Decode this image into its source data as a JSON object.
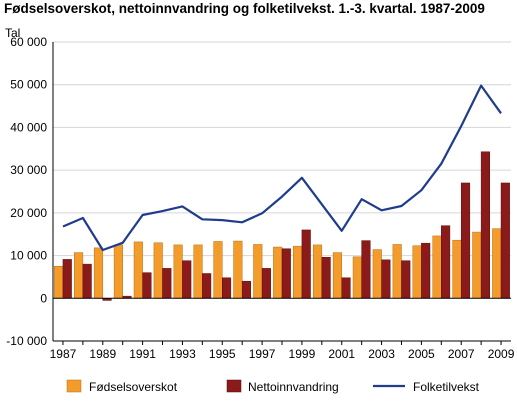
{
  "chart_data": {
    "type": "bar",
    "title": "Fødselsoverskot, nettoinnvandring og folketilvekst. 1.-3. kvartal. 1987-2009",
    "ylabel": "Tal",
    "xlabel": "",
    "ylim": [
      -10000,
      60000
    ],
    "yticks": [
      -10000,
      0,
      10000,
      20000,
      30000,
      40000,
      50000,
      60000
    ],
    "ytick_labels": [
      "-10 000",
      "0",
      "10 000",
      "20 000",
      "30 000",
      "40 000",
      "50 000",
      "60 000"
    ],
    "x": [
      1987,
      1988,
      1989,
      1990,
      1991,
      1992,
      1993,
      1994,
      1995,
      1996,
      1997,
      1998,
      1999,
      2000,
      2001,
      2002,
      2003,
      2004,
      2005,
      2006,
      2007,
      2008,
      2009
    ],
    "xtick_labels": [
      "1987",
      "1989",
      "1991",
      "1993",
      "1995",
      "1997",
      "1999",
      "2001",
      "2003",
      "2005",
      "2007",
      "2009"
    ],
    "grid": true,
    "legend_position": "bottom",
    "series": [
      {
        "name": "Fødselsoverskot",
        "kind": "bar",
        "color": "#f39c2c",
        "values": [
          7500,
          10700,
          11800,
          12500,
          13200,
          13000,
          12500,
          12500,
          13300,
          13400,
          12600,
          12000,
          12200,
          12500,
          10700,
          9700,
          11400,
          12600,
          12300,
          14600,
          13600,
          15500,
          16300
        ]
      },
      {
        "name": "Nettoinnvandring",
        "kind": "bar",
        "color": "#8b1a1a",
        "values": [
          9100,
          8000,
          -500,
          500,
          6000,
          7000,
          8800,
          5800,
          4800,
          4000,
          7000,
          11600,
          16000,
          9600,
          4800,
          13500,
          9000,
          8800,
          12900,
          17000,
          27000,
          34300,
          27000
        ]
      },
      {
        "name": "Folketilvekst",
        "kind": "line",
        "color": "#1f3d8c",
        "values": [
          16800,
          18800,
          11300,
          13000,
          19500,
          20400,
          21500,
          18500,
          18300,
          17800,
          19900,
          23800,
          28200,
          22000,
          15800,
          23200,
          20600,
          21600,
          25300,
          31500,
          40300,
          49800,
          43300
        ]
      }
    ]
  }
}
